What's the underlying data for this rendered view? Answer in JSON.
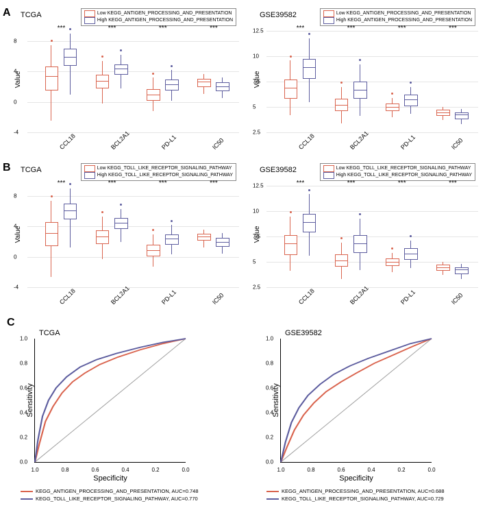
{
  "colors": {
    "low": "#d9634d",
    "high": "#5c5c9e",
    "grid": "#e5e5e5",
    "diag": "#a0a0a0"
  },
  "rowA": {
    "label": "A",
    "legend_low": "Low KEGG_ANTIGEN_PROCESSING_AND_PRESENTATION",
    "legend_high": "High KEGG_ANTIGEN_PROCESSING_AND_PRESENTATION",
    "panels": [
      {
        "dataset": "TCGA",
        "ylabel": "Value",
        "ymin": -4,
        "ymax": 10,
        "yticks": [
          -4,
          0,
          4,
          8
        ],
        "categories": [
          "CCL18",
          "BCL2A1",
          "PD-L1",
          "IC50"
        ],
        "sig": [
          "***",
          "***",
          "***",
          "***"
        ],
        "boxes": [
          {
            "low": {
              "q1": 1.5,
              "med": 3.2,
              "q3": 4.5,
              "wl": -2.5,
              "wh": 7.5
            },
            "high": {
              "q1": 4.8,
              "med": 5.8,
              "q3": 6.8,
              "wl": 1.0,
              "wh": 9.0
            }
          },
          {
            "low": {
              "q1": 1.8,
              "med": 2.6,
              "q3": 3.4,
              "wl": -0.2,
              "wh": 5.4
            },
            "high": {
              "q1": 3.6,
              "med": 4.2,
              "q3": 4.8,
              "wl": 1.8,
              "wh": 6.2
            }
          },
          {
            "low": {
              "q1": 0.2,
              "med": 0.8,
              "q3": 1.5,
              "wl": -1.2,
              "wh": 3.2
            },
            "high": {
              "q1": 1.5,
              "med": 2.1,
              "q3": 2.8,
              "wl": 0.2,
              "wh": 4.2
            }
          },
          {
            "low": {
              "q1": 2.0,
              "med": 2.5,
              "q3": 2.9,
              "wl": 1.1,
              "wh": 3.7
            },
            "high": {
              "q1": 1.4,
              "med": 1.9,
              "q3": 2.4,
              "wl": 0.5,
              "wh": 3.2
            }
          }
        ]
      },
      {
        "dataset": "GSE39582",
        "ylabel": "Value",
        "ymin": 2.5,
        "ymax": 13,
        "yticks": [
          2.5,
          5.0,
          7.5,
          10.0,
          12.5
        ],
        "categories": [
          "CCL18",
          "BCL2A1",
          "PD-L1",
          "IC50"
        ],
        "sig": [
          "***",
          "***",
          "***",
          "***"
        ],
        "boxes": [
          {
            "low": {
              "q1": 5.8,
              "med": 6.8,
              "q3": 7.6,
              "wl": 4.2,
              "wh": 9.6
            },
            "high": {
              "q1": 7.8,
              "med": 8.8,
              "q3": 9.6,
              "wl": 5.5,
              "wh": 11.8
            }
          },
          {
            "low": {
              "q1": 4.6,
              "med": 5.1,
              "q3": 5.7,
              "wl": 3.4,
              "wh": 7.0
            },
            "high": {
              "q1": 5.8,
              "med": 6.6,
              "q3": 7.4,
              "wl": 4.1,
              "wh": 9.2
            }
          },
          {
            "low": {
              "q1": 4.6,
              "med": 4.9,
              "q3": 5.2,
              "wl": 4.0,
              "wh": 5.9
            },
            "high": {
              "q1": 5.1,
              "med": 5.6,
              "q3": 6.1,
              "wl": 4.3,
              "wh": 7.0
            }
          },
          {
            "low": {
              "q1": 4.1,
              "med": 4.3,
              "q3": 4.6,
              "wl": 3.7,
              "wh": 5.0
            },
            "high": {
              "q1": 3.8,
              "med": 4.1,
              "q3": 4.3,
              "wl": 3.3,
              "wh": 4.8
            }
          }
        ]
      }
    ]
  },
  "rowB": {
    "label": "B",
    "legend_low": "Low KEGG_TOLL_LIKE_RECEPTOR_SIGNALING_PATHWAY",
    "legend_high": "High KEGG_TOLL_LIKE_RECEPTOR_SIGNALING_PATHWAY",
    "panels": [
      {
        "dataset": "TCGA",
        "ylabel": "Value",
        "ymin": -4,
        "ymax": 10,
        "yticks": [
          -4,
          0,
          4,
          8
        ],
        "categories": [
          "CCL18",
          "BCL2A1",
          "PD-L1",
          "IC50"
        ],
        "sig": [
          "***",
          "***",
          "***",
          "***"
        ],
        "boxes": [
          {
            "low": {
              "q1": 1.4,
              "med": 3.0,
              "q3": 4.4,
              "wl": -2.6,
              "wh": 7.4
            },
            "high": {
              "q1": 4.9,
              "med": 5.9,
              "q3": 6.8,
              "wl": 1.2,
              "wh": 9.0
            }
          },
          {
            "low": {
              "q1": 1.7,
              "med": 2.5,
              "q3": 3.3,
              "wl": -0.3,
              "wh": 5.3
            },
            "high": {
              "q1": 3.7,
              "med": 4.3,
              "q3": 4.9,
              "wl": 2.0,
              "wh": 6.3
            }
          },
          {
            "low": {
              "q1": 0.1,
              "med": 0.7,
              "q3": 1.4,
              "wl": -1.3,
              "wh": 3.0
            },
            "high": {
              "q1": 1.6,
              "med": 2.2,
              "q3": 2.8,
              "wl": 0.3,
              "wh": 4.2
            }
          },
          {
            "low": {
              "q1": 2.1,
              "med": 2.5,
              "q3": 2.9,
              "wl": 1.2,
              "wh": 3.6
            },
            "high": {
              "q1": 1.3,
              "med": 1.8,
              "q3": 2.3,
              "wl": 0.4,
              "wh": 3.1
            }
          }
        ]
      },
      {
        "dataset": "GSE39582",
        "ylabel": "Value",
        "ymin": 2.5,
        "ymax": 13,
        "yticks": [
          2.5,
          5.0,
          7.5,
          10.0,
          12.5
        ],
        "categories": [
          "CCL18",
          "BCL2A1",
          "PD-L1",
          "IC50"
        ],
        "sig": [
          "***",
          "***",
          "***",
          "***"
        ],
        "boxes": [
          {
            "low": {
              "q1": 5.7,
              "med": 6.7,
              "q3": 7.5,
              "wl": 4.1,
              "wh": 9.5
            },
            "high": {
              "q1": 7.9,
              "med": 8.8,
              "q3": 9.6,
              "wl": 5.6,
              "wh": 11.7
            }
          },
          {
            "low": {
              "q1": 4.5,
              "med": 5.0,
              "q3": 5.6,
              "wl": 3.3,
              "wh": 6.9
            },
            "high": {
              "q1": 5.9,
              "med": 6.7,
              "q3": 7.5,
              "wl": 4.2,
              "wh": 9.3
            }
          },
          {
            "low": {
              "q1": 4.6,
              "med": 4.9,
              "q3": 5.2,
              "wl": 4.0,
              "wh": 5.9
            },
            "high": {
              "q1": 5.2,
              "med": 5.7,
              "q3": 6.2,
              "wl": 4.4,
              "wh": 7.1
            }
          },
          {
            "low": {
              "q1": 4.1,
              "med": 4.3,
              "q3": 4.6,
              "wl": 3.7,
              "wh": 5.0
            },
            "high": {
              "q1": 3.8,
              "med": 4.1,
              "q3": 4.3,
              "wl": 3.3,
              "wh": 4.8
            }
          }
        ]
      }
    ]
  },
  "rowC": {
    "label": "C",
    "panels": [
      {
        "dataset": "TCGA",
        "xlabel": "Specificity",
        "ylabel": "Sensitivity",
        "ticks": [
          "1.0",
          "0.8",
          "0.6",
          "0.4",
          "0.2",
          "0.0"
        ],
        "yticks": [
          "0.0",
          "0.2",
          "0.4",
          "0.6",
          "0.8",
          "1.0"
        ],
        "legend": [
          {
            "text": "KEGG_ANTIGEN_PROCESSING_AND_PRESENTATION, AUC=0.748",
            "color": "#d9634d"
          },
          {
            "text": "KEGG_TOLL_LIKE_RECEPTOR_SIGNALING_PATHWAY, AUC=0.770",
            "color": "#5c5c9e"
          }
        ],
        "curves": [
          {
            "color": "#d9634d",
            "points": [
              [
                0,
                0
              ],
              [
                0.03,
                0.15
              ],
              [
                0.07,
                0.33
              ],
              [
                0.12,
                0.45
              ],
              [
                0.18,
                0.56
              ],
              [
                0.25,
                0.65
              ],
              [
                0.33,
                0.72
              ],
              [
                0.43,
                0.79
              ],
              [
                0.55,
                0.85
              ],
              [
                0.7,
                0.91
              ],
              [
                0.85,
                0.96
              ],
              [
                1,
                1
              ]
            ]
          },
          {
            "color": "#5c5c9e",
            "points": [
              [
                0,
                0
              ],
              [
                0.02,
                0.18
              ],
              [
                0.05,
                0.37
              ],
              [
                0.09,
                0.5
              ],
              [
                0.14,
                0.6
              ],
              [
                0.21,
                0.69
              ],
              [
                0.3,
                0.77
              ],
              [
                0.41,
                0.83
              ],
              [
                0.54,
                0.88
              ],
              [
                0.7,
                0.93
              ],
              [
                0.85,
                0.97
              ],
              [
                1,
                1
              ]
            ]
          }
        ]
      },
      {
        "dataset": "GSE39582",
        "xlabel": "Specificity",
        "ylabel": "Sensitivity",
        "ticks": [
          "1.0",
          "0.8",
          "0.6",
          "0.4",
          "0.2",
          "0.0"
        ],
        "yticks": [
          "0.0",
          "0.2",
          "0.4",
          "0.6",
          "0.8",
          "1.0"
        ],
        "legend": [
          {
            "text": "KEGG_ANTIGEN_PROCESSING_AND_PRESENTATION, AUC=0.688",
            "color": "#d9634d"
          },
          {
            "text": "KEGG_TOLL_LIKE_RECEPTOR_SIGNALING_PATHWAY, AUC=0.729",
            "color": "#5c5c9e"
          }
        ],
        "curves": [
          {
            "color": "#d9634d",
            "points": [
              [
                0,
                0
              ],
              [
                0.04,
                0.12
              ],
              [
                0.09,
                0.26
              ],
              [
                0.15,
                0.38
              ],
              [
                0.22,
                0.48
              ],
              [
                0.3,
                0.57
              ],
              [
                0.4,
                0.65
              ],
              [
                0.5,
                0.72
              ],
              [
                0.62,
                0.8
              ],
              [
                0.75,
                0.87
              ],
              [
                0.88,
                0.94
              ],
              [
                1,
                1
              ]
            ]
          },
          {
            "color": "#5c5c9e",
            "points": [
              [
                0,
                0
              ],
              [
                0.03,
                0.16
              ],
              [
                0.07,
                0.32
              ],
              [
                0.12,
                0.44
              ],
              [
                0.18,
                0.54
              ],
              [
                0.26,
                0.63
              ],
              [
                0.35,
                0.71
              ],
              [
                0.46,
                0.78
              ],
              [
                0.58,
                0.84
              ],
              [
                0.72,
                0.9
              ],
              [
                0.86,
                0.96
              ],
              [
                1,
                1
              ]
            ]
          }
        ]
      }
    ]
  }
}
